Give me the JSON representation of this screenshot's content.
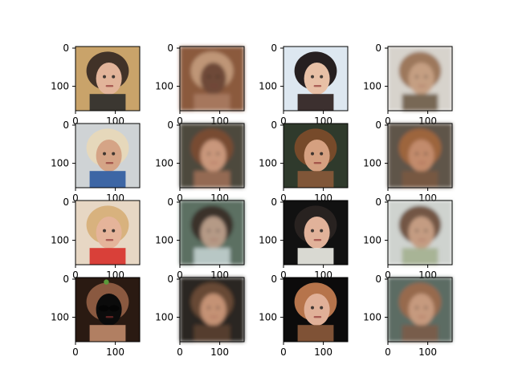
{
  "figure": {
    "rows": 4,
    "cols": 4,
    "x_ticks": [
      "0",
      "100"
    ],
    "y_ticks": [
      "0",
      "100"
    ],
    "tick_label_visibility_by_row": [
      {
        "x_ticks_visible": true
      },
      {
        "x_ticks_visible": true
      },
      {
        "x_ticks_visible": true
      },
      {
        "x_ticks_visible": true
      }
    ]
  },
  "panels": [
    {
      "label": "sharp-face",
      "desc_colors": [
        "#c9a36a",
        "#3a2c25",
        "#e2b49a",
        "#2b2b2b"
      ]
    },
    {
      "label": "blurry-face",
      "desc_colors": [
        "#8b5a3c",
        "#c29a7a",
        "#6e4a37",
        "#a97a60"
      ]
    },
    {
      "label": "sharp-face",
      "desc_colors": [
        "#dde7f0",
        "#1b1414",
        "#e8c0a6",
        "#2a1c1a"
      ]
    },
    {
      "label": "blurry-face",
      "desc_colors": [
        "#d7d3cc",
        "#9a7355",
        "#c59f82",
        "#6e5b48"
      ]
    },
    {
      "label": "sharp-face",
      "desc_colors": [
        "#cfd3d5",
        "#e7d8b9",
        "#d5a486",
        "#2c5aa0"
      ]
    },
    {
      "label": "blurry-face",
      "desc_colors": [
        "#4e4a3d",
        "#7a4b31",
        "#c9977b",
        "#9c6f54"
      ]
    },
    {
      "label": "sharp-face",
      "desc_colors": [
        "#2f3a2c",
        "#7a4b2a",
        "#d5a080",
        "#8a5a3a"
      ]
    },
    {
      "label": "blurry-face",
      "desc_colors": [
        "#5f5548",
        "#a0663d",
        "#c28b6c",
        "#7a5a43"
      ]
    },
    {
      "label": "sharp-face",
      "desc_colors": [
        "#e7d7c4",
        "#d7b07a",
        "#e5b49a",
        "#d7302a"
      ]
    },
    {
      "label": "blurry-face",
      "desc_colors": [
        "#5b6f62",
        "#3a2f29",
        "#b59a86",
        "#c2d0d0"
      ]
    },
    {
      "label": "sharp-face",
      "desc_colors": [
        "#111111",
        "#2a2422",
        "#e1b29a",
        "#f0efe8"
      ]
    },
    {
      "label": "blurry-face",
      "desc_colors": [
        "#cfd3cf",
        "#6e4f3c",
        "#c49c82",
        "#a3b08f"
      ]
    },
    {
      "label": "sharp-face",
      "desc_colors": [
        "#2a1a12",
        "#8f5d43",
        "#0b0b0b",
        "#c08b6c"
      ]
    },
    {
      "label": "blurry-face",
      "desc_colors": [
        "#2b2622",
        "#6a4a38",
        "#c49274",
        "#5a3f31"
      ]
    },
    {
      "label": "sharp-face",
      "desc_colors": [
        "#0c0b0b",
        "#c07a4f",
        "#e0b098",
        "#8c5a3b"
      ]
    },
    {
      "label": "blurry-face",
      "desc_colors": [
        "#5c6c63",
        "#9a6a4c",
        "#c69a7e",
        "#7b5c48"
      ]
    }
  ]
}
